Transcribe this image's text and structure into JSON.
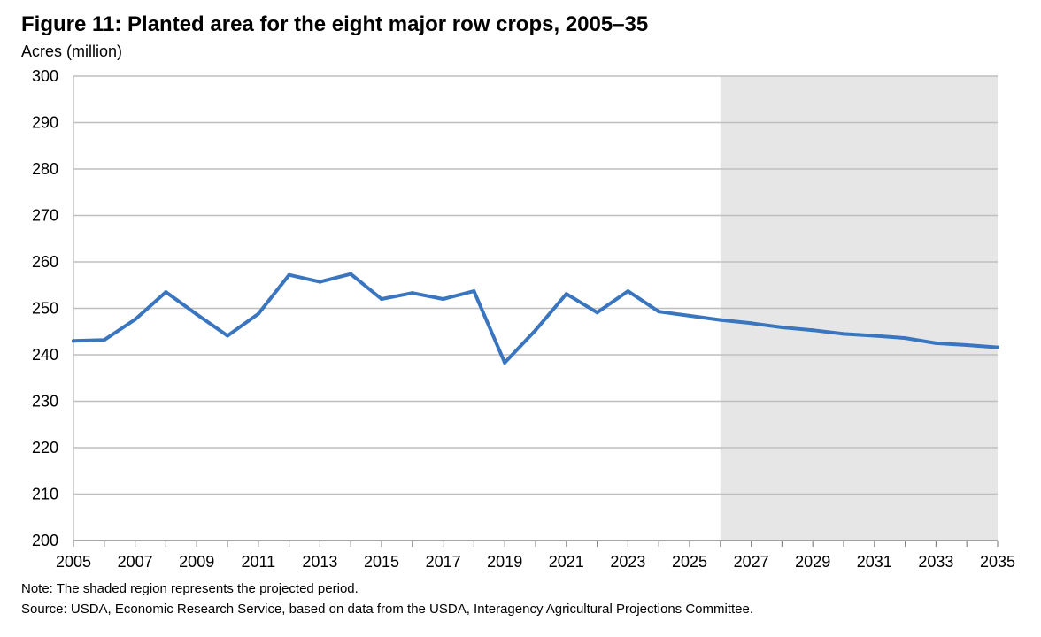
{
  "chart_data": {
    "type": "line",
    "title": "Figure 11: Planted area for the eight major row crops, 2005–35",
    "ylabel": "Acres (million)",
    "xlabel": "",
    "ylim": [
      200,
      300
    ],
    "xlim": [
      2005,
      2035
    ],
    "yticks": [
      200,
      210,
      220,
      230,
      240,
      250,
      260,
      270,
      280,
      290,
      300
    ],
    "xtick_labels": [
      "2005",
      "2007",
      "2009",
      "2011",
      "2013",
      "2015",
      "2017",
      "2019",
      "2021",
      "2023",
      "2025",
      "2027",
      "2029",
      "2031",
      "2033",
      "2035"
    ],
    "grid": "horizontal",
    "projection_start": 2026,
    "shade_color": "#e6e6e6",
    "line_color": "#3a75bf",
    "series": [
      {
        "x": [
          2005,
          2006,
          2007,
          2008,
          2009,
          2010,
          2011,
          2012,
          2013,
          2014,
          2015,
          2016,
          2017,
          2018,
          2019,
          2020,
          2021,
          2022,
          2023,
          2024,
          2025,
          2026,
          2027,
          2028,
          2029,
          2030,
          2031,
          2032,
          2033,
          2034,
          2035
        ],
        "values": [
          243.0,
          243.2,
          247.6,
          253.5,
          248.7,
          244.1,
          248.8,
          257.2,
          255.7,
          257.4,
          252.0,
          253.3,
          252.0,
          253.7,
          238.3,
          245.3,
          253.1,
          249.1,
          253.7,
          249.3,
          248.4,
          247.5,
          246.8,
          245.9,
          245.3,
          244.5,
          244.1,
          243.6,
          242.5,
          242.1,
          241.6
        ]
      }
    ]
  },
  "note": "Note: The shaded region represents the projected period.",
  "source": "Source: USDA, Economic Research Service, based on data from the USDA, Interagency Agricultural Projections Committee."
}
